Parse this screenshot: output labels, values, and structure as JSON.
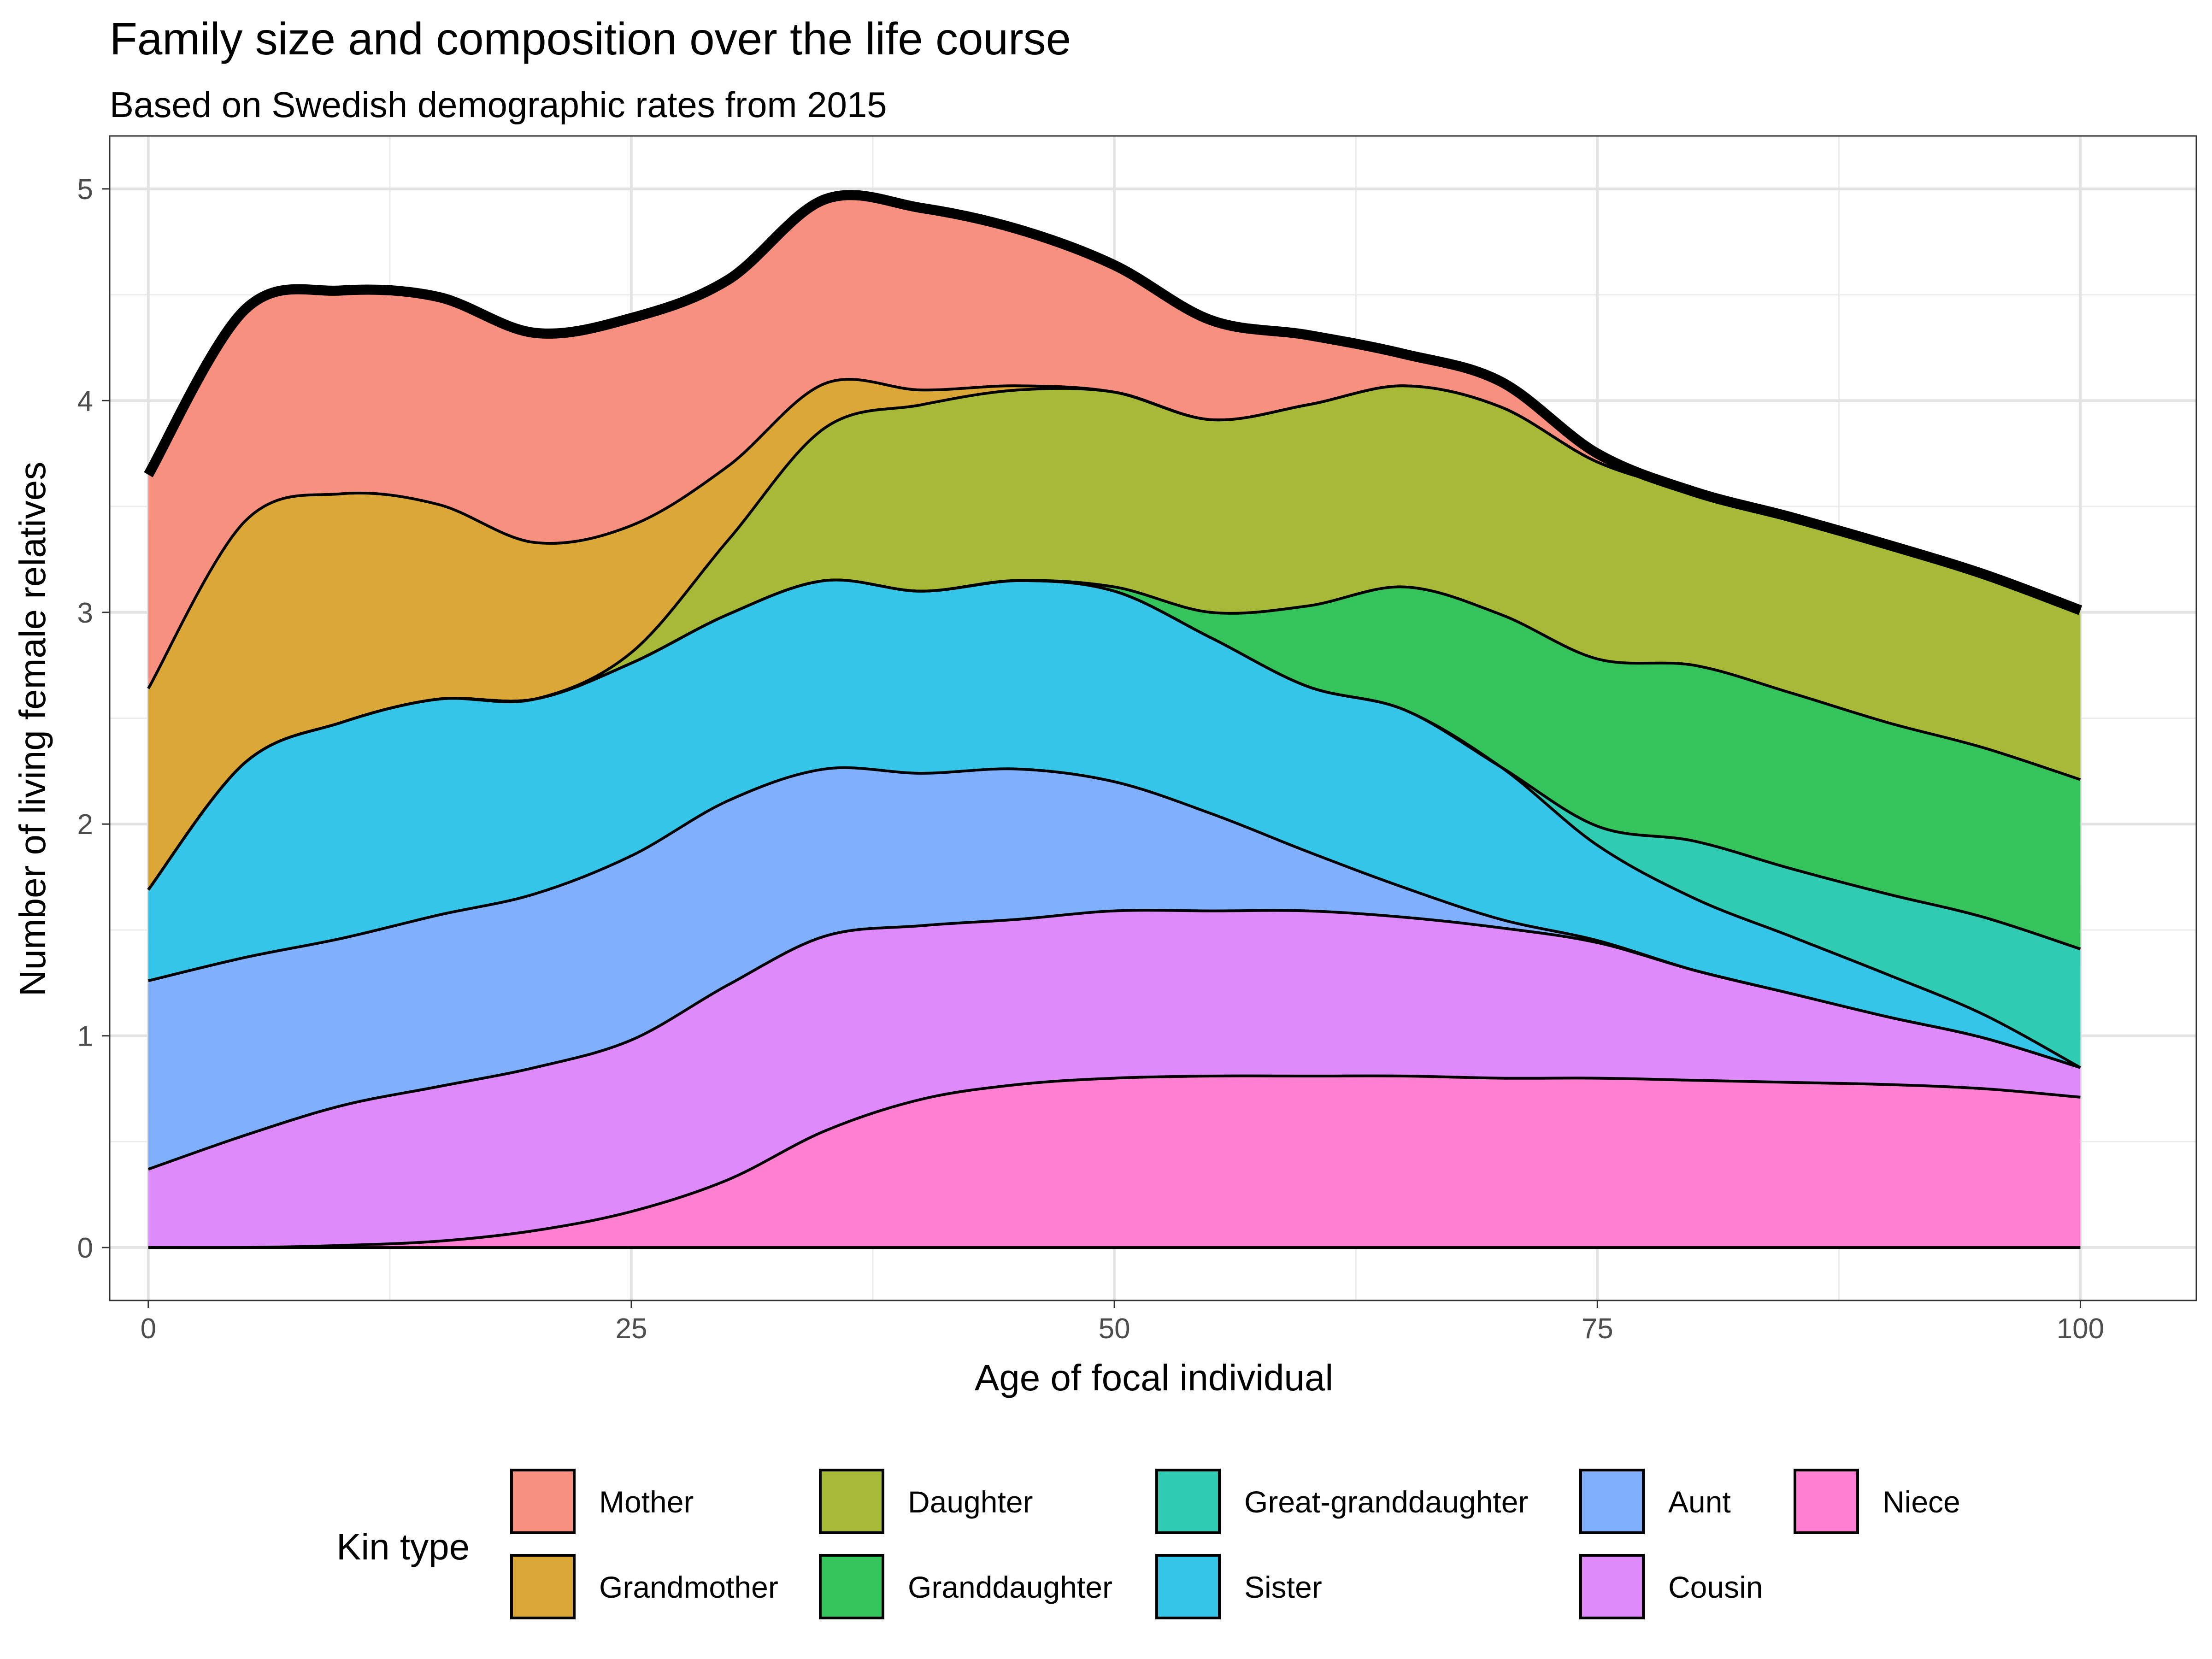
{
  "chart_data": {
    "type": "area",
    "stacked": true,
    "title": "Family size and composition over the life course",
    "subtitle": "Based on Swedish demographic rates from 2015",
    "xlabel": "Age of focal individual",
    "ylabel": "Number of living female relatives",
    "xlim": [
      -2,
      106
    ],
    "ylim": [
      -0.25,
      5.25
    ],
    "x_ticks": [
      0,
      25,
      50,
      75,
      100
    ],
    "y_ticks": [
      0,
      1,
      2,
      3,
      4,
      5
    ],
    "grid": true,
    "legend_position": "bottom",
    "legend_title": "Kin type",
    "total_outline": true,
    "x": [
      0,
      5,
      10,
      15,
      20,
      25,
      30,
      35,
      40,
      45,
      50,
      55,
      60,
      65,
      70,
      75,
      80,
      85,
      90,
      95,
      100
    ],
    "series": [
      {
        "name": "Niece",
        "color": "#FF7FD0",
        "values": [
          0,
          0,
          0.01,
          0.03,
          0.08,
          0.17,
          0.32,
          0.55,
          0.7,
          0.77,
          0.8,
          0.81,
          0.81,
          0.81,
          0.8,
          0.8,
          0.79,
          0.78,
          0.77,
          0.75,
          0.71
        ]
      },
      {
        "name": "Cousin",
        "color": "#DE8AFA",
        "values": [
          0.37,
          0.53,
          0.66,
          0.73,
          0.77,
          0.81,
          0.92,
          0.92,
          0.82,
          0.78,
          0.79,
          0.78,
          0.78,
          0.75,
          0.71,
          0.64,
          0.52,
          0.42,
          0.32,
          0.24,
          0.14
        ]
      },
      {
        "name": "Aunt",
        "color": "#7FAFFD",
        "values": [
          0.89,
          0.84,
          0.79,
          0.81,
          0.82,
          0.87,
          0.87,
          0.79,
          0.72,
          0.71,
          0.61,
          0.46,
          0.28,
          0.14,
          0.04,
          0.01,
          0,
          0,
          0,
          0,
          0
        ]
      },
      {
        "name": "Sister",
        "color": "#35C5E8",
        "values": [
          0.43,
          0.92,
          1.02,
          1.02,
          0.92,
          0.91,
          0.88,
          0.89,
          0.86,
          0.89,
          0.9,
          0.83,
          0.78,
          0.84,
          0.72,
          0.45,
          0.34,
          0.27,
          0.2,
          0.11,
          0
        ]
      },
      {
        "name": "Great-granddaughter",
        "color": "#2FCBB2",
        "values": [
          0,
          0,
          0,
          0,
          0,
          0,
          0,
          0,
          0,
          0,
          0,
          0,
          0,
          0,
          0,
          0.09,
          0.27,
          0.32,
          0.38,
          0.46,
          0.56
        ]
      },
      {
        "name": "Granddaughter",
        "color": "#35C45B",
        "values": [
          0,
          0,
          0,
          0,
          0,
          0,
          0,
          0,
          0,
          0,
          0.02,
          0.12,
          0.38,
          0.58,
          0.72,
          0.79,
          0.83,
          0.83,
          0.81,
          0.8,
          0.8
        ]
      },
      {
        "name": "Daughter",
        "color": "#A7BA38",
        "values": [
          0,
          0,
          0,
          0,
          0,
          0.05,
          0.35,
          0.72,
          0.88,
          0.9,
          0.92,
          0.91,
          0.95,
          0.95,
          0.98,
          0.93,
          0.82,
          0.83,
          0.84,
          0.82,
          0.8
        ]
      },
      {
        "name": "Grandmother",
        "color": "#DBA736",
        "values": [
          0.95,
          1.14,
          1.08,
          0.92,
          0.74,
          0.6,
          0.35,
          0.21,
          0.07,
          0.02,
          0,
          0,
          0,
          0,
          0,
          0,
          0,
          0,
          0,
          0,
          0
        ]
      },
      {
        "name": "Mother",
        "color": "#F8907F",
        "values": [
          1.01,
          1.0,
          0.96,
          0.98,
          0.99,
          0.98,
          0.88,
          0.87,
          0.86,
          0.74,
          0.6,
          0.47,
          0.33,
          0.15,
          0.12,
          0.04,
          0,
          0,
          0,
          0,
          0
        ]
      }
    ],
    "legend_order": [
      "Mother",
      "Grandmother",
      "Daughter",
      "Granddaughter",
      "Great-granddaughter",
      "Sister",
      "Aunt",
      "Cousin",
      "Niece"
    ]
  }
}
